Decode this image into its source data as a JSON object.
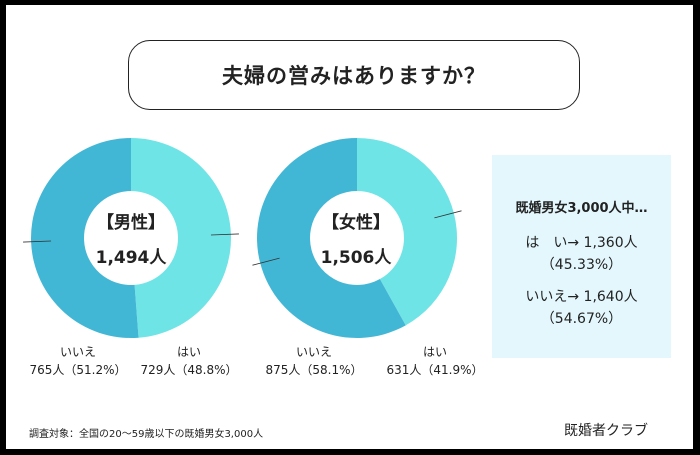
{
  "title": "夫婦の営みはありますか？",
  "colors": {
    "yes": "#6ee4e6",
    "no": "#42b7d5",
    "summary_bg": "#e3f7fd"
  },
  "chart_data": [
    {
      "type": "pie",
      "title": "【男性】",
      "total_label": "1,494人",
      "total": 1494,
      "slices": [
        {
          "name": "はい",
          "count": 729,
          "percent": 48.8,
          "label": "729人（48.8%）"
        },
        {
          "name": "いいえ",
          "count": 765,
          "percent": 51.2,
          "label": "765人（51.2%）"
        }
      ]
    },
    {
      "type": "pie",
      "title": "【女性】",
      "total_label": "1,506人",
      "total": 1506,
      "slices": [
        {
          "name": "はい",
          "count": 631,
          "percent": 41.9,
          "label": "631人（41.9%）"
        },
        {
          "name": "いいえ",
          "count": 875,
          "percent": 58.1,
          "label": "875人（58.1%）"
        }
      ]
    }
  ],
  "summary": {
    "heading": "既婚男女3,000人中…",
    "yes_line": "は　い→ 1,360人",
    "yes_pct": "（45.33%）",
    "no_line": "いいえ→ 1,640人",
    "no_pct": "（54.67%）"
  },
  "footnote": "調査対象：全国の20〜59歳以下の既婚男女3,000人",
  "brand": "既婚者クラブ"
}
